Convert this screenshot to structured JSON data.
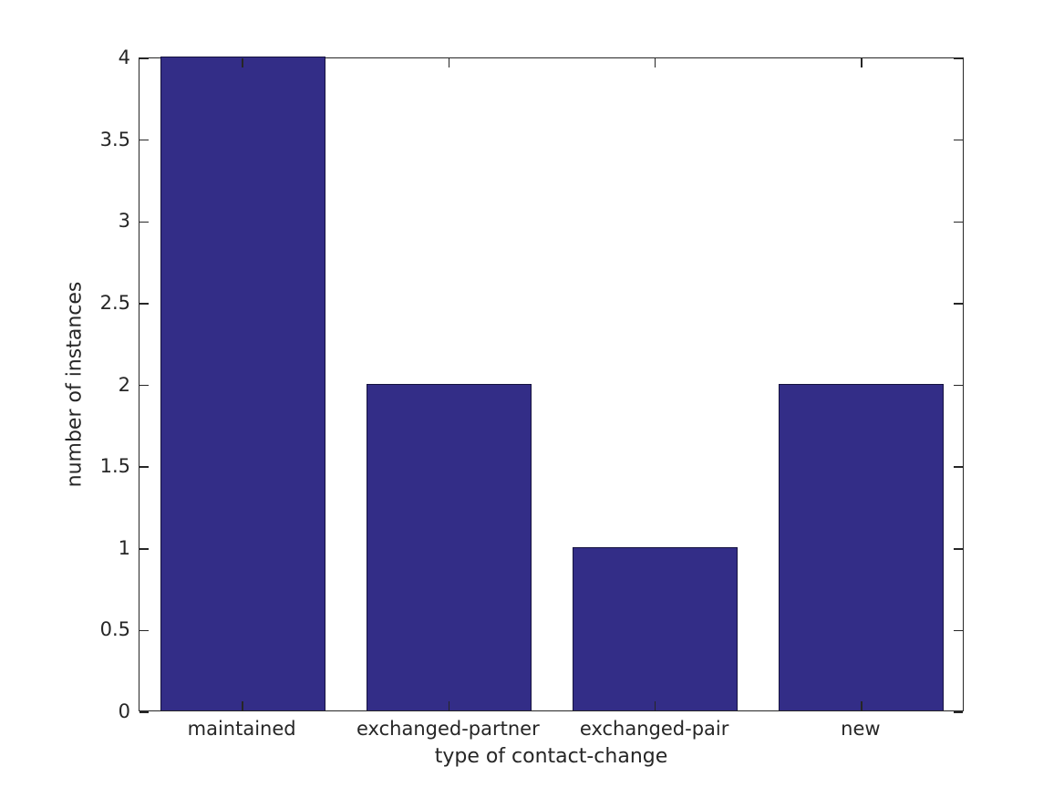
{
  "figure": {
    "background": "#ffffff"
  },
  "chart_data": {
    "type": "bar",
    "title": "",
    "categories": [
      "maintained",
      "exchanged-partner",
      "exchanged-pair",
      "new"
    ],
    "values": [
      4,
      2,
      1,
      2
    ],
    "xlabel": "type of contact-change",
    "ylabel": "number of instances",
    "ylim": [
      0,
      4
    ],
    "yticks": [
      0,
      0.5,
      1,
      1.5,
      2,
      2.5,
      3,
      3.5,
      4
    ],
    "ytick_labels": [
      "0",
      "0.5",
      "1",
      "1.5",
      "2",
      "2.5",
      "3",
      "3.5",
      "4"
    ],
    "bar_width_fraction": 0.8,
    "grid": false,
    "legend": null,
    "box": true,
    "tick_direction": "in",
    "colors": {
      "bar_fill": "#332d87",
      "bar_edge": "#15123f",
      "axis": "#262626",
      "text": "#262626"
    }
  }
}
